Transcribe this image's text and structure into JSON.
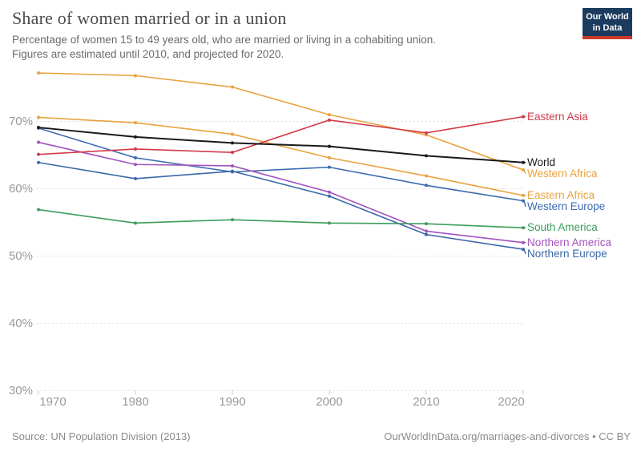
{
  "logo": {
    "line1": "Our World",
    "line2": "in Data",
    "bg_color": "#1B3B5F",
    "accent_color": "#CE3A28"
  },
  "footer": {
    "source": "Source: UN Population Division (2013)",
    "attribution": "OurWorldInData.org/marriages-and-divorces • CC BY"
  },
  "chart_data": {
    "type": "line",
    "title": "Share of women married or in a union",
    "subtitle": [
      "Percentage of women 15 to 49 years old, who are married or living in a cohabiting union.",
      "Figures are estimated until 2010, and projected for 2020."
    ],
    "x": [
      1970,
      1980,
      1990,
      2000,
      2010,
      2020
    ],
    "xtick_labels": [
      "1970",
      "1980",
      "1990",
      "2000",
      "2010",
      "2020"
    ],
    "yticks": [
      70,
      60,
      50,
      40,
      30
    ],
    "ytick_labels": [
      "70%",
      "60%",
      "50%",
      "40%",
      "30%"
    ],
    "ylim": [
      30,
      78
    ],
    "xlabel": "",
    "ylabel": "",
    "grid": "horizontal-dotted",
    "legend_position": "right-of-line-ends",
    "series": [
      {
        "name": "Western Africa",
        "color": "#E8A33D",
        "values": [
          77.2,
          76.8,
          75.1,
          71.0,
          68.0,
          62.8
        ]
      },
      {
        "name": "Eastern Africa",
        "color": "#E8A33D",
        "values": [
          70.6,
          69.8,
          68.1,
          64.6,
          61.9,
          59.0
        ]
      },
      {
        "name": "Northern Europe",
        "color": "#3A67A8",
        "values": [
          63.9,
          61.5,
          62.6,
          58.9,
          53.2,
          51.0
        ]
      },
      {
        "name": "Western Europe",
        "color": "#3C6AB0",
        "values": [
          69.0,
          64.6,
          62.5,
          63.2,
          60.5,
          58.2
        ]
      },
      {
        "name": "Northern America",
        "color": "#A352BE",
        "values": [
          66.9,
          63.6,
          63.4,
          59.5,
          53.7,
          52.0
        ]
      },
      {
        "name": "South America",
        "color": "#3C9D5B",
        "values": [
          56.9,
          54.9,
          55.4,
          54.9,
          54.8,
          54.2
        ]
      },
      {
        "name": "Eastern Asia",
        "color": "#D2394B",
        "values": [
          65.1,
          65.9,
          65.4,
          70.2,
          68.3,
          70.7
        ]
      },
      {
        "name": "World",
        "color": "#1A1A1A",
        "values": [
          69.1,
          67.7,
          66.8,
          66.3,
          64.9,
          63.9
        ],
        "width": 2
      }
    ]
  }
}
